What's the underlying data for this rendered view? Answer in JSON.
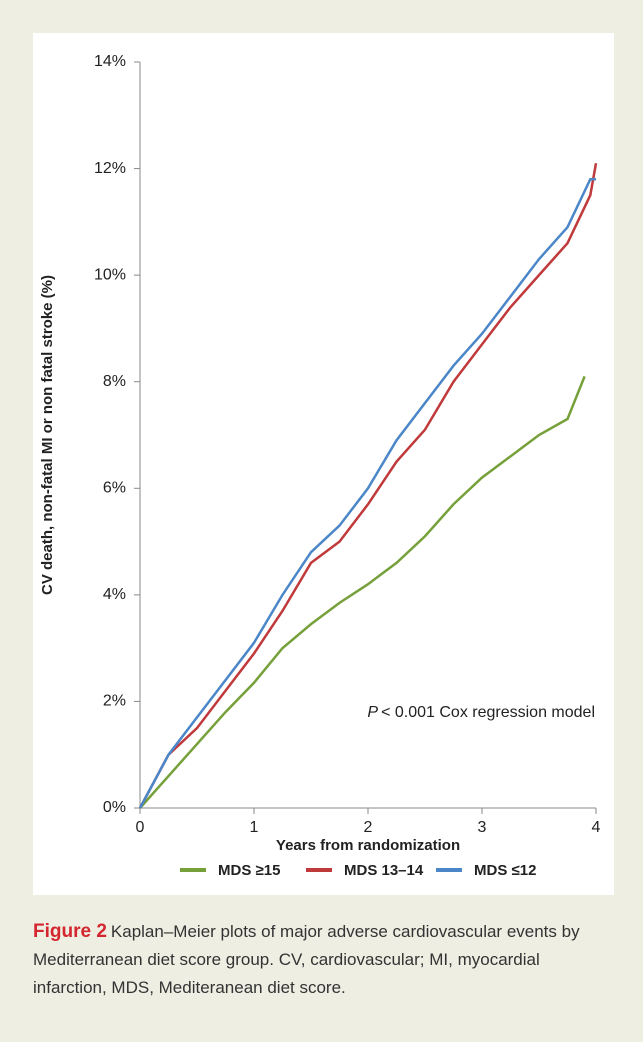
{
  "chart_data": {
    "type": "line",
    "y_label": "CV death, non-fatal MI or non fatal stroke (%)",
    "x_label": "Years from randomization",
    "annotation": [
      "P",
      "< 0.001 Cox regression model"
    ],
    "xlim": [
      0,
      4
    ],
    "xticks": [
      0,
      1,
      2,
      3,
      4
    ],
    "ylim": [
      0,
      14
    ],
    "yticks": [
      {
        "value": 0,
        "label": "0%"
      },
      {
        "value": 2,
        "label": "2%"
      },
      {
        "value": 4,
        "label": "4%"
      },
      {
        "value": 6,
        "label": "6%"
      },
      {
        "value": 8,
        "label": "8%"
      },
      {
        "value": 10,
        "label": "10%"
      },
      {
        "value": 12,
        "label": "12%"
      },
      {
        "value": 14,
        "label": "14%"
      }
    ],
    "legend": "bottom",
    "series": [
      {
        "name": "MDS ≥15",
        "color": "#76a03a",
        "x": [
          0,
          0.25,
          0.5,
          0.75,
          1,
          1.25,
          1.5,
          1.75,
          2,
          2.25,
          2.5,
          2.75,
          3,
          3.25,
          3.5,
          3.75,
          3.9
        ],
        "values": [
          0,
          0.6,
          1.2,
          1.8,
          2.35,
          3.0,
          3.45,
          3.85,
          4.2,
          4.6,
          5.1,
          5.7,
          6.2,
          6.6,
          7.0,
          7.3,
          8.1
        ]
      },
      {
        "name": "MDS 13–14",
        "color": "#c0393b",
        "x": [
          0,
          0.25,
          0.5,
          0.75,
          1,
          1.25,
          1.5,
          1.75,
          2,
          2.25,
          2.5,
          2.75,
          3,
          3.25,
          3.5,
          3.75,
          3.95,
          4
        ],
        "values": [
          0,
          1.0,
          1.5,
          2.2,
          2.9,
          3.7,
          4.6,
          5.0,
          5.7,
          6.5,
          7.1,
          8.0,
          8.7,
          9.4,
          10.0,
          10.6,
          11.5,
          12.1
        ]
      },
      {
        "name": "MDS ≤12",
        "color": "#4a86c8",
        "x": [
          0,
          0.25,
          0.5,
          0.75,
          1,
          1.25,
          1.5,
          1.75,
          2,
          2.25,
          2.5,
          2.75,
          3,
          3.25,
          3.5,
          3.75,
          3.95,
          4
        ],
        "values": [
          0,
          1.0,
          1.7,
          2.4,
          3.1,
          4.0,
          4.8,
          5.3,
          6.0,
          6.9,
          7.6,
          8.3,
          8.9,
          9.6,
          10.3,
          10.9,
          11.8,
          11.8
        ]
      }
    ]
  },
  "caption": {
    "label": "Figure 2",
    "text": "Kaplan–Meier plots of major adverse cardiovascular events by Mediterranean diet score group. CV, cardiovascular; MI, myocardial infarction, MDS, Mediteranean diet score."
  }
}
